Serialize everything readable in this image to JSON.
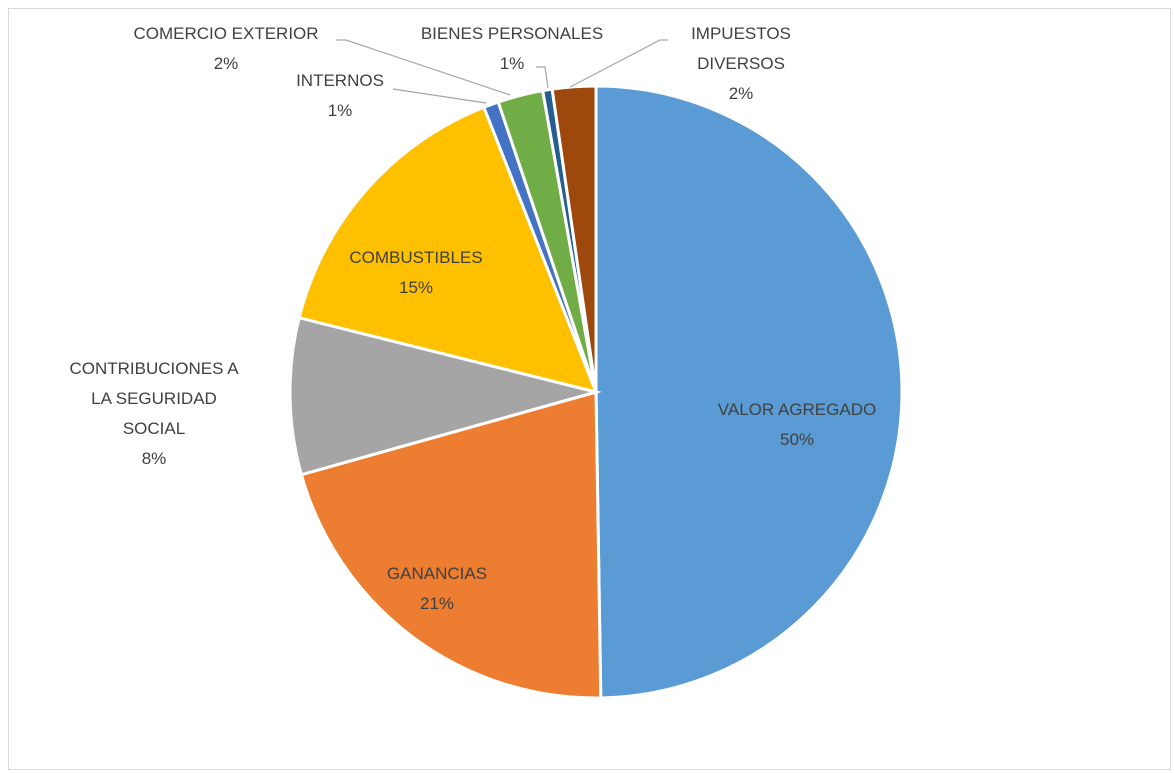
{
  "chart_data": {
    "type": "pie",
    "title": "",
    "slices": [
      {
        "label_lines": [
          "VALOR AGREGADO"
        ],
        "percent_label": "50%",
        "value": 50.0,
        "color": "#5B9BD5"
      },
      {
        "label_lines": [
          "GANANCIAS"
        ],
        "percent_label": "21%",
        "value": 21.0,
        "color": "#ED7D31"
      },
      {
        "label_lines": [
          "CONTRIBUCIONES A",
          "LA SEGURIDAD",
          "SOCIAL"
        ],
        "percent_label": "8%",
        "value": 8.3,
        "color": "#A5A5A5"
      },
      {
        "label_lines": [
          "COMBUSTIBLES"
        ],
        "percent_label": "15%",
        "value": 15.2,
        "color": "#FFC000"
      },
      {
        "label_lines": [
          "INTERNOS"
        ],
        "percent_label": "1%",
        "value": 0.8,
        "color": "#4472C4"
      },
      {
        "label_lines": [
          "COMERCIO EXTERIOR"
        ],
        "percent_label": "2%",
        "value": 2.4,
        "color": "#70AD47"
      },
      {
        "label_lines": [
          "BIENES PERSONALES"
        ],
        "percent_label": "1%",
        "value": 0.5,
        "color": "#255E91"
      },
      {
        "label_lines": [
          "IMPUESTOS",
          "DIVERSOS"
        ],
        "percent_label": "2%",
        "value": 2.3,
        "color": "#9E480E"
      }
    ]
  }
}
